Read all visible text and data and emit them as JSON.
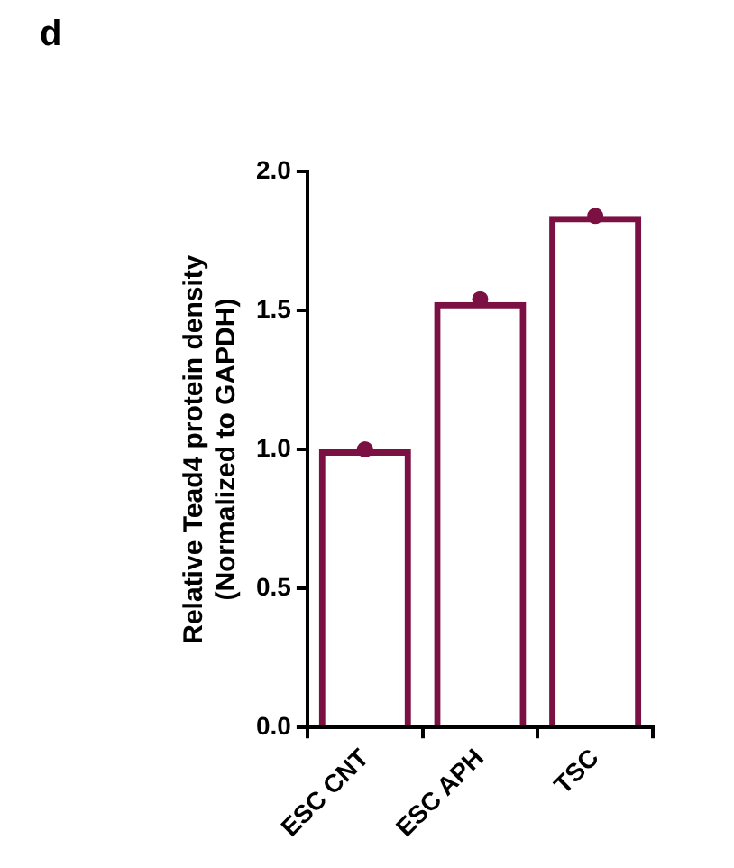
{
  "chart_data": {
    "type": "bar",
    "annotations": [
      "d"
    ],
    "ylabel": "Relative Tead4 protein density\n(Normalized to GAPDH)",
    "categories": [
      "ESC CNT",
      "ESC APH",
      "TSC"
    ],
    "series": [
      {
        "color": "#7b1042",
        "values": [
          1.0,
          1.53,
          1.84
        ]
      },
      {
        "type": "scatter",
        "color": "#7b1042",
        "x": [
          "ESC CNT",
          "ESC APH",
          "TSC"
        ],
        "values": [
          1.0,
          1.54,
          1.84
        ]
      }
    ],
    "ylim": [
      0,
      2
    ],
    "yticks": [
      {
        "value": 0,
        "label": "0.0"
      },
      {
        "value": 0.5,
        "label": "0.5"
      },
      {
        "value": 1,
        "label": "1.0"
      },
      {
        "value": 1.5,
        "label": "1.5"
      },
      {
        "value": 2,
        "label": "2.0"
      }
    ],
    "grid": false,
    "legend": false,
    "marker": "circle"
  }
}
